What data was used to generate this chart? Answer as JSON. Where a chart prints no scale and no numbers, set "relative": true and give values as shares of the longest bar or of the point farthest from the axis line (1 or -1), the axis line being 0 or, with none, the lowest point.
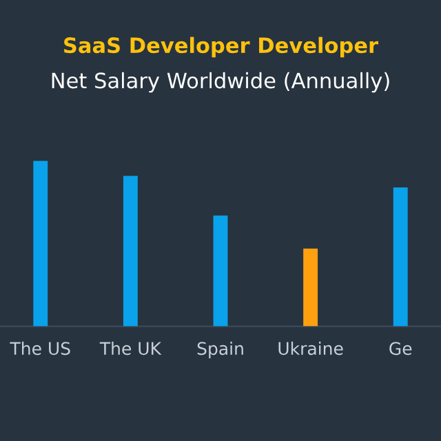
{
  "chart_data": {
    "type": "bar",
    "title": "SaaS Developer Developer",
    "subtitle": "Net Salary Worldwide (Annually)",
    "categories": [
      "The US",
      "The UK",
      "Spain",
      "Ukraine",
      "Ge"
    ],
    "values": [
      1,
      0.91,
      0.67,
      0.47,
      0.84
    ],
    "colors": [
      "#0aa2ea",
      "#0aa2ea",
      "#0aa2ea",
      "#ffa010",
      "#0aa2ea"
    ],
    "relative": true
  }
}
